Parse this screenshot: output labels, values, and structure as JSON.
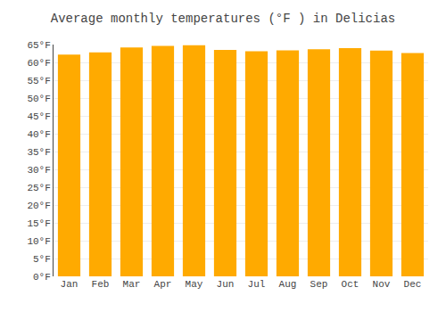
{
  "chart_data": {
    "type": "bar",
    "title": "Average monthly temperatures (°F ) in Delicias",
    "categories": [
      "Jan",
      "Feb",
      "Mar",
      "Apr",
      "May",
      "Jun",
      "Jul",
      "Aug",
      "Sep",
      "Oct",
      "Nov",
      "Dec"
    ],
    "values": [
      62.2,
      62.8,
      64.2,
      64.6,
      64.8,
      63.5,
      63.1,
      63.4,
      63.7,
      64.0,
      63.3,
      62.6
    ],
    "color": "#FFAA00",
    "ylim": [
      0,
      65
    ],
    "yticks": [
      {
        "value": 0,
        "label": "0°F"
      },
      {
        "value": 5,
        "label": "5°F"
      },
      {
        "value": 10,
        "label": "10°F"
      },
      {
        "value": 15,
        "label": "15°F"
      },
      {
        "value": 20,
        "label": "20°F"
      },
      {
        "value": 25,
        "label": "25°F"
      },
      {
        "value": 30,
        "label": "30°F"
      },
      {
        "value": 35,
        "label": "35°F"
      },
      {
        "value": 40,
        "label": "40°F"
      },
      {
        "value": 45,
        "label": "45°F"
      },
      {
        "value": 50,
        "label": "50°F"
      },
      {
        "value": 55,
        "label": "55°F"
      },
      {
        "value": 60,
        "label": "60°F"
      },
      {
        "value": 65,
        "label": "65°F"
      }
    ],
    "grid": true
  }
}
